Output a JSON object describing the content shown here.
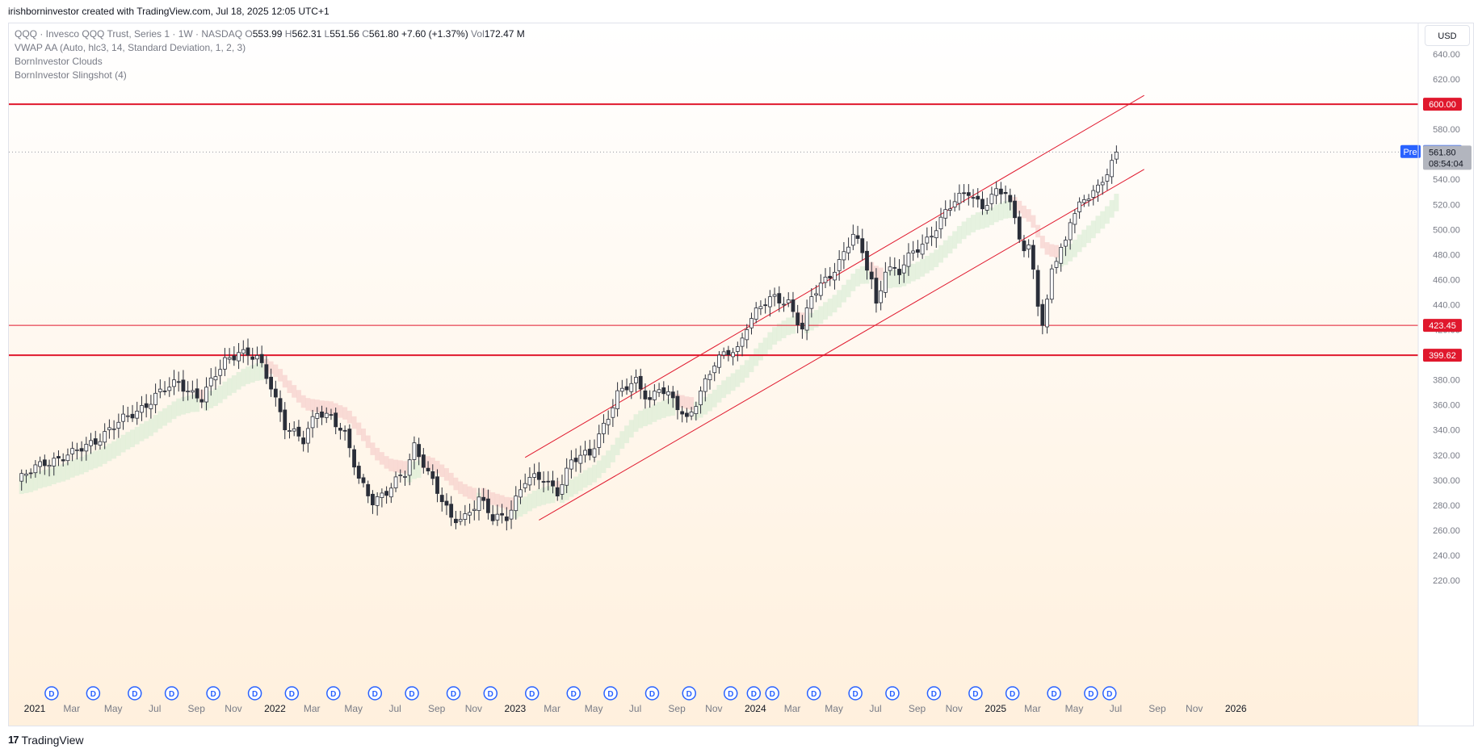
{
  "header": {
    "credit": "irishborninvestor created with TradingView.com, Jul 18, 2025 12:05 UTC+1"
  },
  "legend": {
    "symbol_line": "QQQ · Invesco QQQ Trust, Series 1 · 1W · NASDAQ",
    "o_label": "O",
    "o_value": "553.99",
    "h_label": "H",
    "h_value": "562.31",
    "l_label": "L",
    "l_value": "551.56",
    "c_label": "C",
    "c_value": "561.80",
    "change": "+7.60 (+1.37%)",
    "vol_label": "Vol",
    "vol_value": "172.47 M",
    "indicator_1": "VWAP AA (Auto, hlc3, 14, Standard Deviation, 1, 2, 3)",
    "indicator_2": "BornInvestor Clouds",
    "indicator_3": "BornInvestor Slingshot (4)"
  },
  "currency_button": "USD",
  "footer": {
    "logo": "17",
    "brand": "TradingView"
  },
  "colors": {
    "up": "#ffffff",
    "down": "#2a2e39",
    "level_line": "#e0182d",
    "channel": "#e0182d",
    "cloud_green": "#d8ecd4",
    "cloud_red": "#f6cdca",
    "pre_badge": "#2962ff",
    "price_badge": "#787b86"
  },
  "chart_data": {
    "type": "candlestick",
    "symbol": "QQQ",
    "interval": "1W",
    "ylim": [
      210,
      650
    ],
    "y_ticks": [
      220,
      240,
      260,
      280,
      300,
      320,
      340,
      360,
      380,
      400,
      420,
      440,
      460,
      480,
      500,
      520,
      540,
      560,
      580,
      600,
      620,
      640
    ],
    "x_ticks": [
      {
        "label": "2021",
        "t": 0
      },
      {
        "label": "Mar",
        "t": 8
      },
      {
        "label": "May",
        "t": 17
      },
      {
        "label": "Jul",
        "t": 26
      },
      {
        "label": "Sep",
        "t": 35
      },
      {
        "label": "Nov",
        "t": 43
      },
      {
        "label": "2022",
        "t": 52
      },
      {
        "label": "Mar",
        "t": 60
      },
      {
        "label": "May",
        "t": 69
      },
      {
        "label": "Jul",
        "t": 78
      },
      {
        "label": "Sep",
        "t": 87
      },
      {
        "label": "Nov",
        "t": 95
      },
      {
        "label": "2023",
        "t": 104
      },
      {
        "label": "Mar",
        "t": 112
      },
      {
        "label": "May",
        "t": 121
      },
      {
        "label": "Jul",
        "t": 130
      },
      {
        "label": "Sep",
        "t": 139
      },
      {
        "label": "Nov",
        "t": 147
      },
      {
        "label": "2024",
        "t": 156
      },
      {
        "label": "Mar",
        "t": 164
      },
      {
        "label": "May",
        "t": 173
      },
      {
        "label": "Jul",
        "t": 182
      },
      {
        "label": "Sep",
        "t": 191
      },
      {
        "label": "Nov",
        "t": 199
      },
      {
        "label": "2025",
        "t": 208
      },
      {
        "label": "Mar",
        "t": 216
      },
      {
        "label": "May",
        "t": 225
      },
      {
        "label": "Jul",
        "t": 234
      },
      {
        "label": "Sep",
        "t": 243
      },
      {
        "label": "Nov",
        "t": 251
      },
      {
        "label": "2026",
        "t": 260
      }
    ],
    "xlim": [
      0,
      268
    ],
    "horizontal_levels": [
      {
        "value": 600.0,
        "label": "600.00",
        "width": 2
      },
      {
        "value": 423.45,
        "label": "423.45",
        "width": 1
      },
      {
        "value": 399.62,
        "label": "399.62",
        "width": 2
      }
    ],
    "channel_lines": [
      {
        "from": [
          110,
          318
        ],
        "to": [
          244,
          607
        ]
      },
      {
        "from": [
          113,
          268
        ],
        "to": [
          244,
          548
        ]
      }
    ],
    "premarket": {
      "label": "Pre",
      "value": "562.20"
    },
    "last_price": {
      "value": "561.80",
      "countdown": "08:54:04"
    },
    "anchor_points": [
      {
        "t": 0,
        "v": 298
      },
      {
        "t": 6,
        "v": 315
      },
      {
        "t": 12,
        "v": 320
      },
      {
        "t": 18,
        "v": 335
      },
      {
        "t": 24,
        "v": 350
      },
      {
        "t": 30,
        "v": 367
      },
      {
        "t": 35,
        "v": 378
      },
      {
        "t": 40,
        "v": 365
      },
      {
        "t": 45,
        "v": 395
      },
      {
        "t": 48,
        "v": 404
      },
      {
        "t": 52,
        "v": 396
      },
      {
        "t": 55,
        "v": 375
      },
      {
        "t": 58,
        "v": 345
      },
      {
        "t": 62,
        "v": 330
      },
      {
        "t": 65,
        "v": 355
      },
      {
        "t": 68,
        "v": 352
      },
      {
        "t": 71,
        "v": 335
      },
      {
        "t": 74,
        "v": 300
      },
      {
        "t": 77,
        "v": 285
      },
      {
        "t": 80,
        "v": 290
      },
      {
        "t": 84,
        "v": 305
      },
      {
        "t": 86,
        "v": 328
      },
      {
        "t": 88,
        "v": 315
      },
      {
        "t": 91,
        "v": 290
      },
      {
        "t": 94,
        "v": 268
      },
      {
        "t": 97,
        "v": 272
      },
      {
        "t": 100,
        "v": 285
      },
      {
        "t": 103,
        "v": 268
      },
      {
        "t": 106,
        "v": 272
      },
      {
        "t": 110,
        "v": 300
      },
      {
        "t": 114,
        "v": 300
      },
      {
        "t": 117,
        "v": 292
      },
      {
        "t": 120,
        "v": 315
      },
      {
        "t": 124,
        "v": 320
      },
      {
        "t": 127,
        "v": 345
      },
      {
        "t": 130,
        "v": 368
      },
      {
        "t": 134,
        "v": 378
      },
      {
        "t": 137,
        "v": 365
      },
      {
        "t": 139,
        "v": 375
      },
      {
        "t": 142,
        "v": 362
      },
      {
        "t": 145,
        "v": 348
      },
      {
        "t": 148,
        "v": 372
      },
      {
        "t": 151,
        "v": 392
      },
      {
        "t": 154,
        "v": 402
      },
      {
        "t": 156,
        "v": 405
      },
      {
        "t": 158,
        "v": 425
      },
      {
        "t": 161,
        "v": 438
      },
      {
        "t": 164,
        "v": 445
      },
      {
        "t": 167,
        "v": 443
      },
      {
        "t": 170,
        "v": 420
      },
      {
        "t": 172,
        "v": 445
      },
      {
        "t": 175,
        "v": 460
      },
      {
        "t": 178,
        "v": 475
      },
      {
        "t": 181,
        "v": 495
      },
      {
        "t": 183,
        "v": 480
      },
      {
        "t": 185,
        "v": 460
      },
      {
        "t": 186,
        "v": 440
      },
      {
        "t": 188,
        "v": 470
      },
      {
        "t": 191,
        "v": 465
      },
      {
        "t": 194,
        "v": 482
      },
      {
        "t": 197,
        "v": 493
      },
      {
        "t": 200,
        "v": 507
      },
      {
        "t": 203,
        "v": 522
      },
      {
        "t": 206,
        "v": 532
      },
      {
        "t": 209,
        "v": 518
      },
      {
        "t": 212,
        "v": 528
      },
      {
        "t": 214,
        "v": 530
      },
      {
        "t": 216,
        "v": 510
      },
      {
        "t": 218,
        "v": 485
      },
      {
        "t": 219,
        "v": 485
      },
      {
        "t": 220,
        "v": 468
      },
      {
        "t": 221,
        "v": 440
      },
      {
        "t": 222,
        "v": 420
      },
      {
        "t": 223,
        "v": 440
      },
      {
        "t": 224,
        "v": 470
      },
      {
        "t": 226,
        "v": 485
      },
      {
        "t": 227,
        "v": 492
      },
      {
        "t": 228,
        "v": 510
      },
      {
        "t": 231,
        "v": 522
      },
      {
        "t": 234,
        "v": 532
      },
      {
        "t": 236,
        "v": 548
      },
      {
        "t": 237,
        "v": 555
      },
      {
        "t": 238,
        "v": 561.8
      }
    ],
    "dividend_markers_t": [
      4,
      13,
      22,
      30,
      39,
      48,
      56,
      65,
      74,
      82,
      91,
      99,
      108,
      117,
      125,
      134,
      142,
      151,
      156,
      160,
      169,
      178,
      186,
      195,
      204,
      212,
      221,
      229,
      233
    ]
  }
}
